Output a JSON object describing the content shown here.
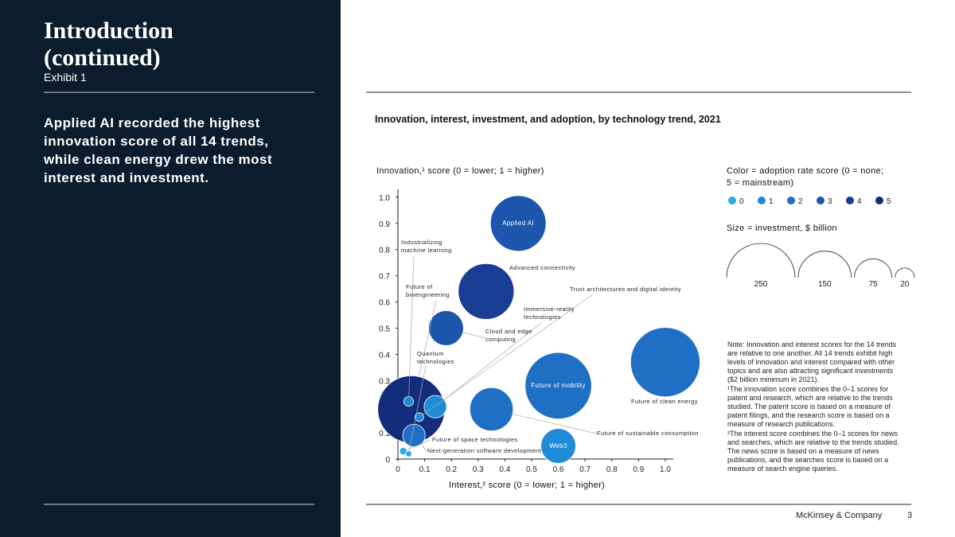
{
  "sidebar": {
    "title": "Introduction (continued)",
    "exhibit": "Exhibit 1",
    "headline": "Applied AI recorded the highest innovation score of all 14 trends, while clean energy drew the most interest and investment."
  },
  "footer": {
    "company": "McKinsey & Company",
    "page": "3"
  },
  "chart_data": {
    "type": "bubble",
    "title": "Innovation, interest, investment, and adoption, by technology trend, 2021",
    "y_label": "Innovation,¹ score (0 = lower; 1 = higher)",
    "x_label": "Interest,² score (0 = lower; 1 = higher)",
    "labels": [
      "Applied AI",
      "Industrializing machine learning",
      "Future of bioengineering",
      "Future of space technologies",
      "Quantum technologies",
      "Next-generation software development",
      "Trust architectures and digital identity",
      "Cloud and edge computing",
      "Immersive-reality technologies",
      "Advanced connectivity",
      "Future of sustainable consumption",
      "Future of mobility",
      "Web3",
      "Future of clean energy"
    ],
    "x": [
      0.45,
      0.04,
      0.05,
      0.02,
      0.04,
      0.06,
      0.08,
      0.18,
      0.14,
      0.33,
      0.35,
      0.6,
      0.6,
      1.0
    ],
    "values": [
      0.9,
      0.22,
      0.19,
      0.03,
      0.02,
      0.09,
      0.16,
      0.5,
      0.2,
      0.64,
      0.19,
      0.28,
      0.05,
      0.37
    ],
    "sizes": [
      165,
      5,
      240,
      3,
      2,
      27,
      4,
      65,
      27,
      166,
      100,
      236,
      65,
      257
    ],
    "adoption": [
      3,
      1,
      5,
      0,
      0,
      2,
      1,
      3,
      1,
      4,
      2,
      2,
      1,
      2
    ],
    "xlim": [
      0,
      1.03
    ],
    "ylim": [
      0,
      1.03
    ],
    "xticks": [
      0,
      0.1,
      0.2,
      0.3,
      0.4,
      0.5,
      0.6,
      0.7,
      0.8,
      0.9,
      {
        "value": 1,
        "label": "1.0"
      }
    ],
    "yticks": [
      0,
      0.1,
      0.2,
      0.3,
      0.4,
      0.5,
      0.6,
      0.7,
      0.8,
      0.9,
      {
        "value": 1,
        "label": "1.0"
      }
    ],
    "color_legend": {
      "title": "Color = adoption rate score (0 = none; 5 = mainstream)",
      "scores": [
        0,
        1,
        2,
        3,
        4,
        5
      ],
      "colors": [
        "#2ea8e6",
        "#1f8ad6",
        "#1f6fc4",
        "#1d56ad",
        "#1a3d94",
        "#142c7c"
      ]
    },
    "size_legend": {
      "title": "Size = investment, $ billion",
      "sizes": [
        250,
        150,
        75,
        20
      ]
    },
    "note": [
      "Note: Innovation and interest scores for the 14 trends are relative to one another. All 14 trends exhibit high levels of innovation and interest compared with other topics and are also attracting significant investments ($2 billion minimum in 2021).",
      "¹The innovation score combines the 0–1 scores for patent and research, which are relative to the trends studied. The patent score is based on a measure of patent filings, and the research score is based on a measure of research publications.",
      "²The interest score combines the 0–1 scores for news and searches, which are relative to the trends studied. The news score is based on a measure of news publications, and the searches score is based on a measure of search engine queries."
    ]
  }
}
